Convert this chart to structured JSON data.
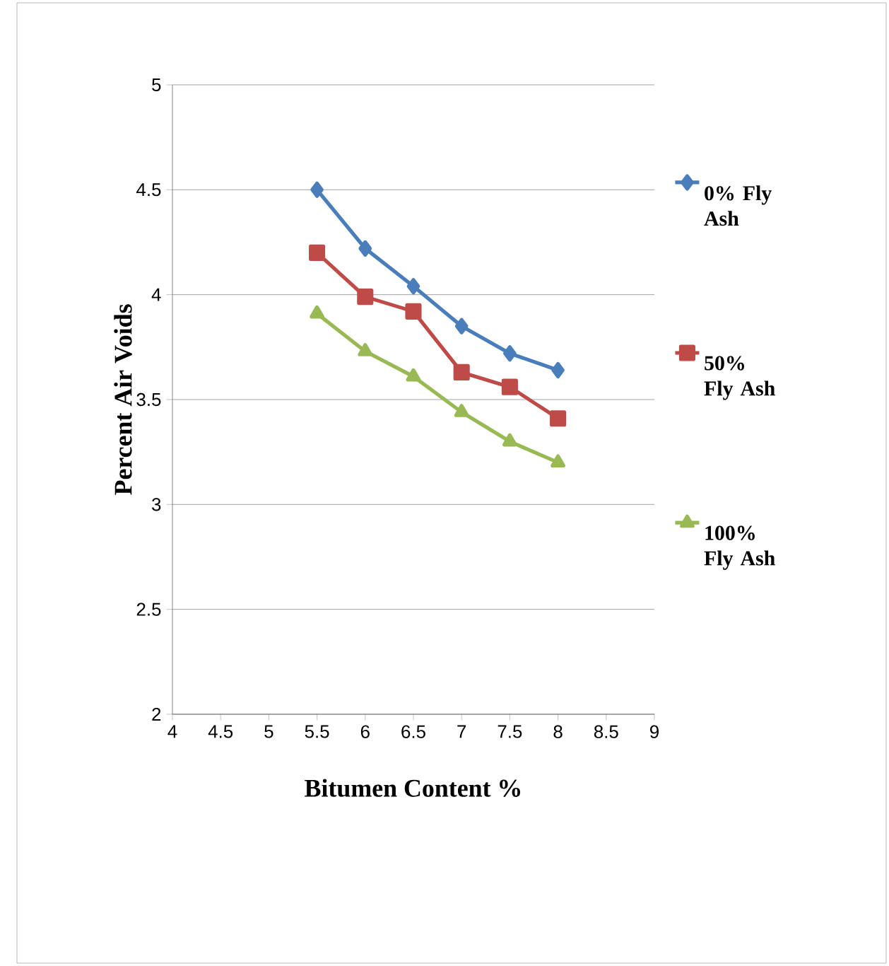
{
  "chart_data": {
    "type": "line",
    "xlabel": "Bitumen Content %",
    "ylabel": "Percent Air Voids",
    "x": [
      5.5,
      6,
      6.5,
      7,
      7.5,
      8
    ],
    "series": [
      {
        "name": "0% Fly Ash",
        "color": "#4a7ebb",
        "marker": "diamond",
        "values": [
          4.5,
          4.22,
          4.04,
          3.85,
          3.72,
          3.64
        ]
      },
      {
        "name": "50% Fly Ash",
        "color": "#be4b48",
        "marker": "square",
        "values": [
          4.2,
          3.99,
          3.92,
          3.63,
          3.56,
          3.41
        ]
      },
      {
        "name": "100% Fly Ash",
        "color": "#98b954",
        "marker": "triangle",
        "values": [
          3.91,
          3.73,
          3.61,
          3.44,
          3.3,
          3.2
        ]
      }
    ],
    "xlim": [
      4,
      9
    ],
    "xticks": [
      4,
      4.5,
      5,
      5.5,
      6,
      6.5,
      7,
      7.5,
      8,
      8.5,
      9
    ],
    "ylim": [
      2,
      5
    ],
    "yticks": [
      2,
      2.5,
      3,
      3.5,
      4,
      4.5,
      5
    ],
    "grid": "y",
    "legend": "right",
    "line_style": "solid"
  }
}
